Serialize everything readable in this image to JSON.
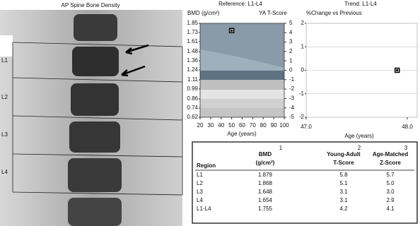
{
  "image": {
    "title": "AP Spine Bone Density",
    "labels": [
      "L1",
      "L2",
      "L3",
      "L4"
    ]
  },
  "chart_data": [
    {
      "type": "scatter",
      "title": "Reference: L1-L4",
      "y_label": "BMD (g/cm²)",
      "y2_label": "YA T-Score",
      "x_label": "Age (years)",
      "x": [
        50
      ],
      "series": [
        {
          "color": "#000000",
          "values": [
            1.755
          ]
        }
      ],
      "xlim": [
        20,
        100
      ],
      "xticks": [
        20,
        30,
        40,
        50,
        60,
        70,
        80,
        90,
        100
      ],
      "ylim": [
        0.62,
        1.85
      ],
      "yticks": [
        0.62,
        0.74,
        0.86,
        0.99,
        1.11,
        1.24,
        1.36,
        1.48,
        1.61,
        1.73,
        1.85
      ],
      "y2lim": [
        -5,
        5
      ],
      "y2ticks": [
        -5,
        -4,
        -3,
        -2,
        -1,
        0,
        1,
        2,
        3,
        4,
        5
      ],
      "grid": false
    },
    {
      "type": "scatter",
      "title": "Trend: L1-L4",
      "y_label": "%Change vs Previous",
      "x_label": "Age (years)",
      "x": [
        47.9
      ],
      "series": [
        {
          "color": "#000000",
          "values": [
            0
          ]
        }
      ],
      "xlim": [
        47,
        48
      ],
      "xticks": [
        {
          "value": 47,
          "label": "47.0"
        },
        {
          "value": 48,
          "label": "48.0"
        }
      ],
      "ylim": [
        -2,
        2
      ],
      "yticks": [
        -2,
        -1,
        0,
        1,
        2
      ],
      "grid": true
    }
  ],
  "table": {
    "header": [
      [
        "Region",
        ""
      ],
      [
        "BMD",
        "(g/cm²)",
        "1"
      ],
      [
        "Young-Adult",
        "T-Score",
        "2"
      ],
      [
        "Age-Matched",
        "Z-Score",
        "3"
      ]
    ],
    "rows": [
      [
        "L1",
        "1.879",
        "5.8",
        "5.7"
      ],
      [
        "L2",
        "1.868",
        "5.1",
        "5.0"
      ],
      [
        "L3",
        "1.648",
        "3.1",
        "3.0"
      ],
      [
        "L4",
        "1.654",
        "3.1",
        "2.9"
      ],
      [
        "L1-L4",
        "1.755",
        "4.2",
        "4.1"
      ]
    ]
  }
}
